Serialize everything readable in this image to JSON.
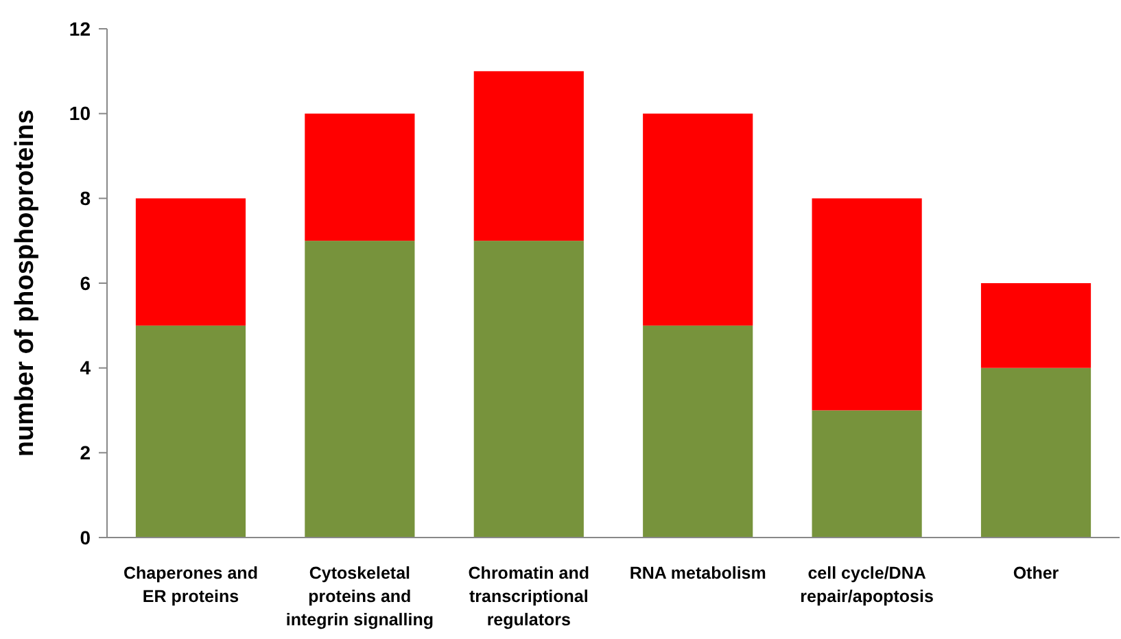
{
  "chart_data": {
    "type": "bar",
    "stacked": true,
    "ylabel": "number of phosphoproteins",
    "categories": [
      "Chaperones and\nER proteins",
      "Cytoskeletal\nproteins and\nintegrin signalling",
      "Chromatin and\ntranscriptional\nregulators",
      "RNA metabolism",
      "cell cycle/DNA\nrepair/apoptosis",
      "Other"
    ],
    "series": [
      {
        "color": "#77933c",
        "values": [
          5,
          7,
          7,
          5,
          3,
          4
        ]
      },
      {
        "color": "#ff0000",
        "values": [
          3,
          3,
          4,
          5,
          5,
          2
        ]
      }
    ],
    "ylim": [
      0,
      12
    ],
    "yticks": [
      0,
      2,
      4,
      6,
      8,
      10,
      12
    ],
    "grid": false
  }
}
